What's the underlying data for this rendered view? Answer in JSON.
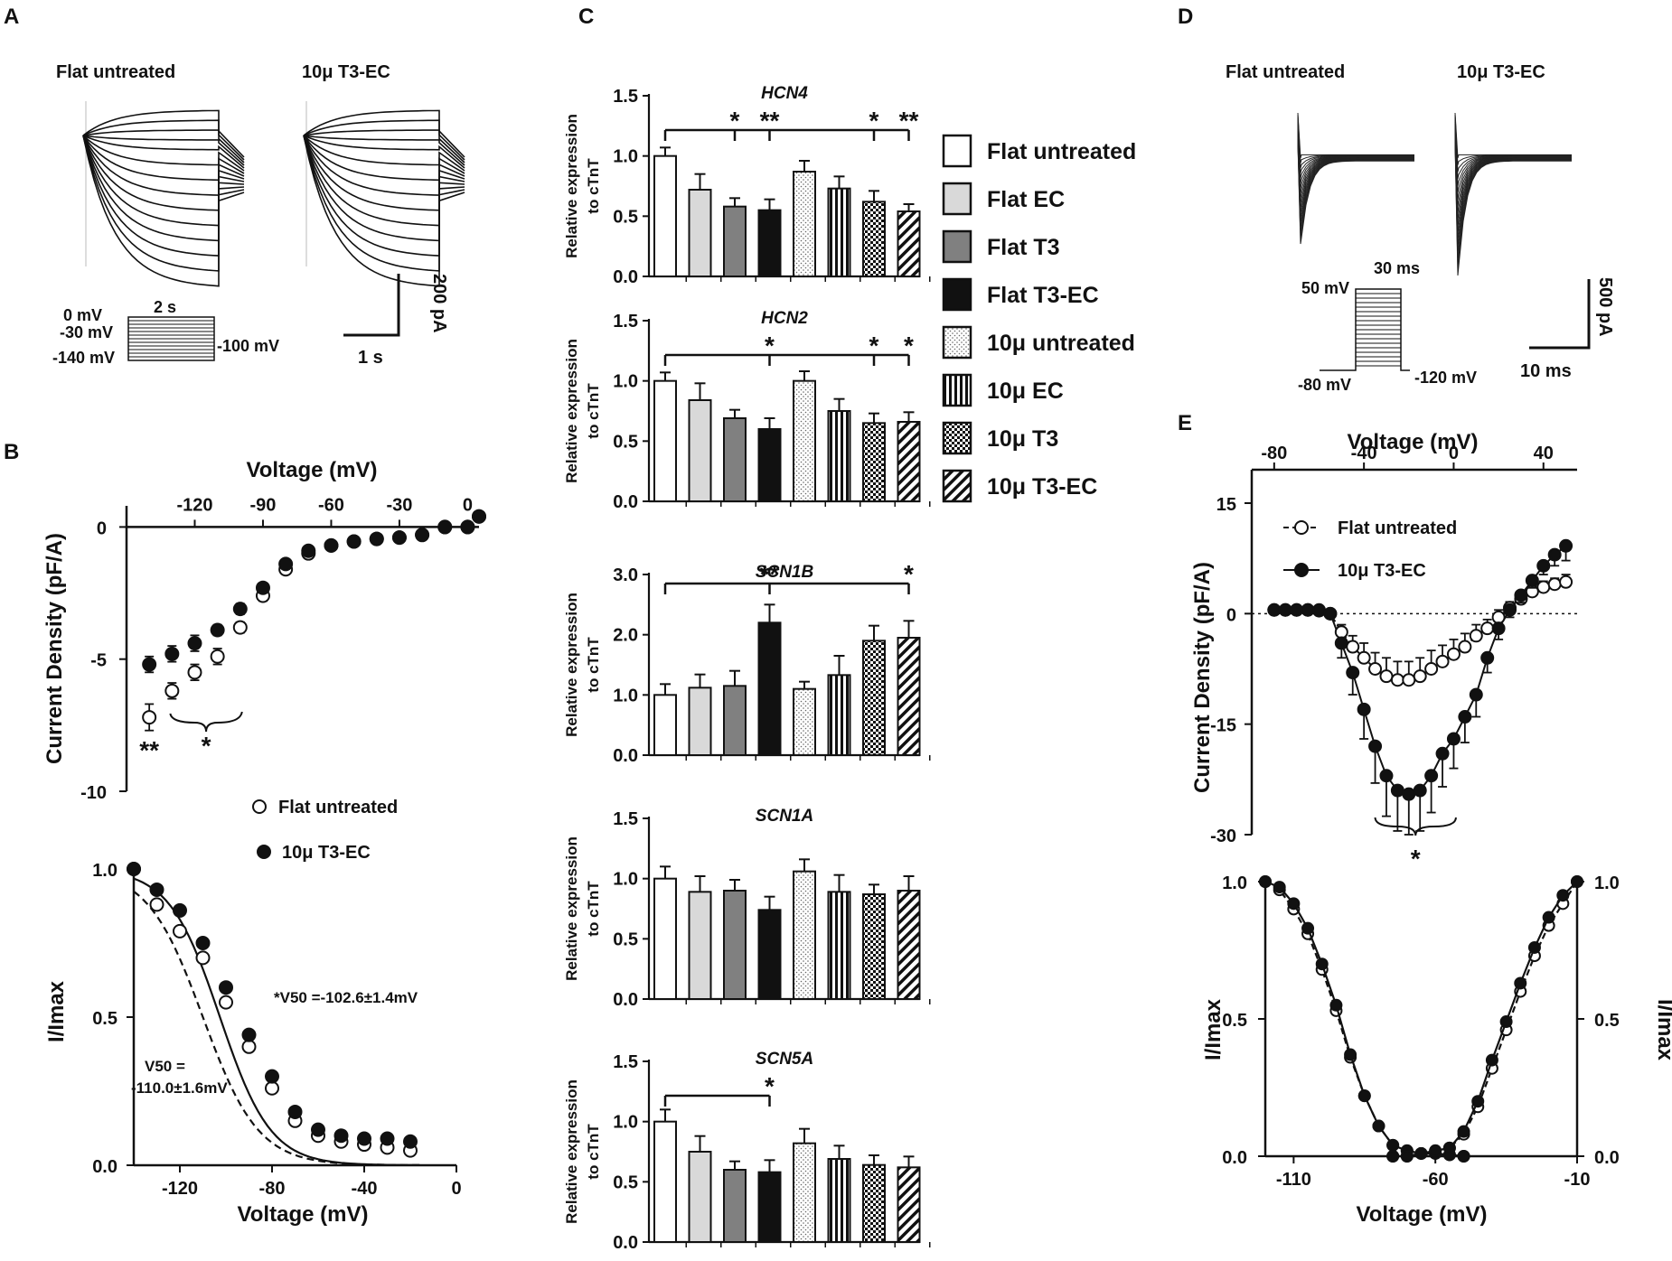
{
  "panels": {
    "A": {
      "letter": "A",
      "trace_labels": [
        "Flat untreated",
        "10μ T3-EC"
      ],
      "protocol": {
        "v0": "0 mV",
        "v30": "-30 mV",
        "v140": "-140 mV",
        "v100": "-100 mV",
        "duration": "2 s"
      },
      "scale": {
        "current": "200 pA",
        "time": "1 s"
      }
    },
    "D": {
      "letter": "D",
      "trace_labels": [
        "Flat untreated",
        "10μ T3-EC"
      ],
      "protocol": {
        "v50": "50 mV",
        "v80": "-80 mV",
        "v120": "-120 mV",
        "duration": "30 ms"
      },
      "scale": {
        "current": "500 pA",
        "time": "10 ms"
      }
    }
  },
  "chart_data": [
    {
      "id": "B-top",
      "panel": "B",
      "type": "scatter",
      "title": "",
      "xlabel": "Voltage (mV)",
      "ylabel": "Current Density (pF/A)",
      "xlim": [
        -150,
        5
      ],
      "ylim": [
        -10,
        0.8
      ],
      "xticks": [
        "-120",
        "-90",
        "-60",
        "-30",
        "0"
      ],
      "yticks": [
        "0",
        "-5",
        "-10"
      ],
      "x": [
        -140,
        -130,
        -120,
        -110,
        -100,
        -90,
        -80,
        -70,
        -60,
        -50,
        -40,
        -30,
        -20,
        -10,
        0,
        5
      ],
      "series": [
        {
          "name": "Flat untreated",
          "marker": "open",
          "values": [
            -7.2,
            -6.2,
            -5.5,
            -4.9,
            -3.8,
            -2.6,
            -1.6,
            -1.0,
            -0.7,
            -0.55,
            -0.45,
            -0.4,
            -0.3,
            0.0,
            0.0,
            0.4
          ],
          "errors": [
            0.5,
            0.3,
            0.3,
            0.3,
            0.2,
            0.2,
            0.1,
            0.1,
            0.05,
            0.05,
            0.05,
            0.05,
            0.05,
            0.05,
            0.05,
            0.05
          ]
        },
        {
          "name": "10μ T3-EC",
          "marker": "filled",
          "values": [
            -5.2,
            -4.8,
            -4.4,
            -3.9,
            -3.1,
            -2.3,
            -1.4,
            -0.9,
            -0.7,
            -0.55,
            -0.45,
            -0.4,
            -0.3,
            0.0,
            0.0,
            0.4
          ],
          "errors": [
            0.3,
            0.3,
            0.3,
            0.2,
            0.2,
            0.1,
            0.1,
            0.05,
            0.05,
            0.05,
            0.05,
            0.05,
            0.05,
            0.05,
            0.05,
            0.05
          ]
        }
      ],
      "annotations": [
        "**",
        "*"
      ]
    },
    {
      "id": "B-bottom",
      "panel": "B",
      "type": "scatter",
      "xlabel": "Voltage (mV)",
      "ylabel": "I/Imax",
      "xlim": [
        -140,
        0
      ],
      "ylim": [
        0,
        1
      ],
      "xticks": [
        "-120",
        "-80",
        "-40",
        "0"
      ],
      "yticks": [
        "0.0",
        "0.5",
        "1.0"
      ],
      "x": [
        -140,
        -130,
        -120,
        -110,
        -100,
        -90,
        -80,
        -70,
        -60,
        -50,
        -40,
        -30,
        -20
      ],
      "series": [
        {
          "name": "Flat untreated",
          "marker": "open",
          "values": [
            1.0,
            0.88,
            0.79,
            0.7,
            0.55,
            0.4,
            0.26,
            0.15,
            0.1,
            0.08,
            0.07,
            0.06,
            0.05
          ]
        },
        {
          "name": "10μ T3-EC",
          "marker": "filled",
          "values": [
            1.0,
            0.93,
            0.86,
            0.75,
            0.6,
            0.44,
            0.3,
            0.18,
            0.12,
            0.1,
            0.09,
            0.09,
            0.08
          ]
        }
      ],
      "fits": [
        {
          "name": "Flat untreated",
          "v50": -110.0,
          "k": 12,
          "style": "dashed"
        },
        {
          "name": "10μ T3-EC",
          "v50": -102.6,
          "k": 11,
          "style": "solid"
        }
      ],
      "legend": [
        "Flat untreated",
        "10μ T3-EC"
      ],
      "annotations": {
        "t3ec_v50": "*V50 =-102.6±1.4mV",
        "flat_v50_a": "V50 =",
        "flat_v50_b": "-110.0±1.6mV"
      }
    },
    {
      "id": "C",
      "panel": "C",
      "type": "bar",
      "ylabel": "Relative expression to cTnT",
      "categories": [
        "Flat untreated",
        "Flat EC",
        "Flat T3",
        "Flat T3-EC",
        "10μ untreated",
        "10μ EC",
        "10μ T3",
        "10μ T3-EC"
      ],
      "genes": [
        {
          "name": "HCN4",
          "ylim": [
            0,
            1.5
          ],
          "yticks": [
            "0.0",
            "0.5",
            "1.0",
            "1.5"
          ],
          "values": [
            1.0,
            0.72,
            0.58,
            0.55,
            0.87,
            0.73,
            0.62,
            0.54
          ],
          "errors": [
            0.07,
            0.13,
            0.07,
            0.09,
            0.09,
            0.1,
            0.09,
            0.06
          ],
          "bracket_stars": [
            {
              "bar": 2,
              "text": "*"
            },
            {
              "bar": 3,
              "text": "**"
            },
            {
              "bar": 6,
              "text": "*"
            },
            {
              "bar": 7,
              "text": "**"
            }
          ]
        },
        {
          "name": "HCN2",
          "ylim": [
            0,
            1.5
          ],
          "yticks": [
            "0.0",
            "0.5",
            "1.0",
            "1.5"
          ],
          "values": [
            1.0,
            0.84,
            0.69,
            0.6,
            1.0,
            0.75,
            0.65,
            0.66
          ],
          "errors": [
            0.07,
            0.14,
            0.07,
            0.09,
            0.08,
            0.1,
            0.08,
            0.08
          ],
          "bracket_stars": [
            {
              "bar": 3,
              "text": "*"
            },
            {
              "bar": 6,
              "text": "*"
            },
            {
              "bar": 7,
              "text": "*"
            }
          ]
        },
        {
          "name": "SCN1B",
          "ylim": [
            0,
            3.0
          ],
          "yticks": [
            "0.0",
            "1.0",
            "2.0",
            "3.0"
          ],
          "values": [
            1.0,
            1.12,
            1.15,
            2.2,
            1.1,
            1.33,
            1.9,
            1.95
          ],
          "errors": [
            0.18,
            0.22,
            0.25,
            0.3,
            0.12,
            0.32,
            0.25,
            0.28
          ],
          "bracket_stars": [
            {
              "bar": 3,
              "text": "**"
            },
            {
              "bar": 7,
              "text": "*"
            }
          ]
        },
        {
          "name": "SCN1A",
          "ylim": [
            0,
            1.5
          ],
          "yticks": [
            "0.0",
            "0.5",
            "1.0",
            "1.5"
          ],
          "values": [
            1.0,
            0.89,
            0.9,
            0.74,
            1.06,
            0.89,
            0.87,
            0.9
          ],
          "errors": [
            0.1,
            0.13,
            0.09,
            0.11,
            0.1,
            0.14,
            0.08,
            0.12
          ],
          "bracket_stars": []
        },
        {
          "name": "SCN5A",
          "ylim": [
            0,
            1.5
          ],
          "yticks": [
            "0.0",
            "0.5",
            "1.0",
            "1.5"
          ],
          "values": [
            1.0,
            0.75,
            0.6,
            0.58,
            0.82,
            0.69,
            0.64,
            0.62
          ],
          "errors": [
            0.1,
            0.13,
            0.07,
            0.1,
            0.12,
            0.11,
            0.08,
            0.09
          ],
          "bracket_stars": [
            {
              "bar": 3,
              "text": "*"
            }
          ]
        }
      ]
    },
    {
      "id": "E-top",
      "panel": "E",
      "type": "line",
      "xlabel": "Voltage (mV)",
      "ylabel": "Current Density (pF/A)",
      "xlim": [
        -90,
        55
      ],
      "ylim": [
        -30,
        15
      ],
      "xticks": [
        "-80",
        "-40",
        "0",
        "40"
      ],
      "yticks": [
        "15",
        "0",
        "-15",
        "-30"
      ],
      "x": [
        -80,
        -75,
        -70,
        -65,
        -60,
        -55,
        -50,
        -45,
        -40,
        -35,
        -30,
        -25,
        -20,
        -15,
        -10,
        -5,
        0,
        5,
        10,
        15,
        20,
        25,
        30,
        35,
        40,
        45,
        50
      ],
      "series": [
        {
          "name": "Flat untreated",
          "marker": "open",
          "style": "dashed",
          "values": [
            0.5,
            0.5,
            0.5,
            0.5,
            0.4,
            0,
            -2.5,
            -4.5,
            -6,
            -7.5,
            -8.5,
            -9,
            -9,
            -8.5,
            -7.5,
            -6.5,
            -5.5,
            -4.5,
            -3,
            -2,
            -0.5,
            0.8,
            2,
            3,
            3.6,
            4,
            4.3
          ],
          "errors": [
            0.2,
            0.2,
            0.2,
            0.2,
            0.2,
            0.5,
            1,
            1.5,
            2,
            2.2,
            2.5,
            2.5,
            2.5,
            2.5,
            2.5,
            2.2,
            2,
            1.8,
            1.5,
            1.2,
            1,
            0.8,
            0.8,
            0.8,
            0.8,
            0.8,
            1
          ]
        },
        {
          "name": "10μ T3-EC",
          "marker": "filled",
          "style": "solid",
          "values": [
            0.5,
            0.5,
            0.5,
            0.5,
            0.5,
            0,
            -4,
            -8,
            -13,
            -18,
            -22,
            -24,
            -24.5,
            -24,
            -22,
            -19,
            -17,
            -14,
            -11,
            -6,
            -2,
            0.5,
            2.5,
            4.5,
            6.5,
            8,
            9.2
          ],
          "errors": [
            0.2,
            0.2,
            0.2,
            0.2,
            0.2,
            0.5,
            2,
            3,
            4,
            5,
            5.5,
            5.5,
            5.5,
            5.5,
            5,
            4.5,
            4,
            3.5,
            3,
            2,
            1.5,
            1,
            1,
            1,
            1.2,
            1.5,
            2
          ]
        }
      ],
      "legend": [
        "Flat untreated",
        "10μ T3-EC"
      ],
      "annotations": [
        "*"
      ]
    },
    {
      "id": "E-bottom",
      "panel": "E",
      "type": "scatter",
      "xlabel": "Voltage (mV)",
      "ylabel": "I/Imax",
      "ylabel_right": "I/Imax",
      "xlim": [
        -120,
        -10
      ],
      "ylim": [
        0,
        1
      ],
      "xticks": [
        "-110",
        "-60",
        "-10"
      ],
      "yticks": [
        "0.0",
        "0.5",
        "1.0"
      ],
      "yticks_right": [
        "0.0",
        "0.5",
        "1.0"
      ],
      "inactivation": {
        "x": [
          -120,
          -115,
          -110,
          -105,
          -100,
          -95,
          -90,
          -85,
          -80,
          -75,
          -70,
          -65,
          -60,
          -55,
          -50
        ],
        "flat": [
          1.0,
          0.97,
          0.9,
          0.81,
          0.68,
          0.53,
          0.36,
          0.22,
          0.11,
          0.04,
          0.02,
          0.01,
          0.01,
          0.005,
          0
        ],
        "t3ec": [
          1.0,
          0.98,
          0.92,
          0.83,
          0.7,
          0.55,
          0.37,
          0.22,
          0.11,
          0.04,
          0.02,
          0.01,
          0.01,
          0.005,
          0
        ]
      },
      "activation": {
        "x": [
          -75,
          -70,
          -65,
          -60,
          -55,
          -50,
          -45,
          -40,
          -35,
          -30,
          -25,
          -20,
          -15,
          -10
        ],
        "flat": [
          0,
          0,
          0.01,
          0.02,
          0.03,
          0.08,
          0.18,
          0.32,
          0.46,
          0.6,
          0.73,
          0.84,
          0.92,
          1.0
        ],
        "t3ec": [
          0,
          0,
          0.01,
          0.02,
          0.03,
          0.09,
          0.2,
          0.35,
          0.49,
          0.63,
          0.76,
          0.87,
          0.95,
          1.0
        ]
      }
    }
  ],
  "legend_C": {
    "items": [
      {
        "label": "Flat untreated",
        "fill": "white"
      },
      {
        "label": "Flat EC",
        "fill": "#d9d9d9"
      },
      {
        "label": "Flat T3",
        "fill": "#808080"
      },
      {
        "label": "Flat T3-EC",
        "fill": "black"
      },
      {
        "label": "10μ untreated",
        "fill": "dots"
      },
      {
        "label": "10μ EC",
        "fill": "vlines"
      },
      {
        "label": "10μ T3",
        "fill": "check"
      },
      {
        "label": "10μ T3-EC",
        "fill": "diag"
      }
    ]
  }
}
